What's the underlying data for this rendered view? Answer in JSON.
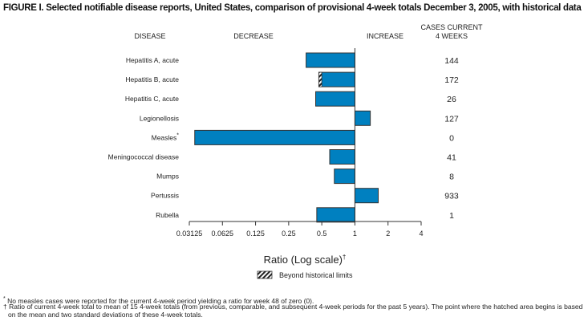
{
  "chart_data": {
    "type": "bar",
    "orientation": "horizontal",
    "title": "FIGURE I. Selected notifiable disease reports, United States, comparison of provisional 4-week totals December 3, 2005, with historical data",
    "headers": {
      "disease": "DISEASE",
      "decrease": "DECREASE",
      "increase": "INCREASE",
      "cases_line1": "CASES CURRENT",
      "cases_line2": "4 WEEKS"
    },
    "categories": [
      "Hepatitis A, acute",
      "Hepatitis B, acute",
      "Hepatitis C, acute",
      "Legionellosis",
      "Measles",
      "Meningococcal disease",
      "Mumps",
      "Pertussis",
      "Rubella"
    ],
    "category_marks": [
      "",
      "",
      "",
      "",
      "*",
      "",
      "",
      "",
      ""
    ],
    "values": [
      0.36,
      0.47,
      0.44,
      1.38,
      0.035,
      0.59,
      0.65,
      1.63,
      0.45
    ],
    "hatched_to": [
      null,
      0.5,
      null,
      null,
      null,
      null,
      null,
      null,
      null
    ],
    "cases": [
      "144",
      "172",
      "26",
      "127",
      "0",
      "41",
      "8",
      "933",
      "1"
    ],
    "xscale": "log2",
    "xlim": [
      0.03125,
      4
    ],
    "xticks": [
      "0.03125",
      "0.0625",
      "0.125",
      "0.25",
      "0.5",
      "1",
      "2",
      "4"
    ],
    "xlabel": "Ratio (Log scale)",
    "xlabel_mark": "†",
    "legend": {
      "label": "Beyond historical limits",
      "placement": "bottom-center"
    },
    "colors": {
      "bar": "#0080c0",
      "outline": "#333333"
    }
  },
  "footnotes": [
    {
      "mark": "*",
      "text": "No measles cases were reported for the current 4-week period yielding a ratio for week 48 of zero (0)."
    },
    {
      "mark": "†",
      "text": "Ratio of current 4-week total to mean of 15 4-week totals (from previous, comparable, and subsequent 4-week periods for the past 5 years). The point where the hatched area begins is based on the mean and two standard deviations of these 4-week totals."
    }
  ]
}
